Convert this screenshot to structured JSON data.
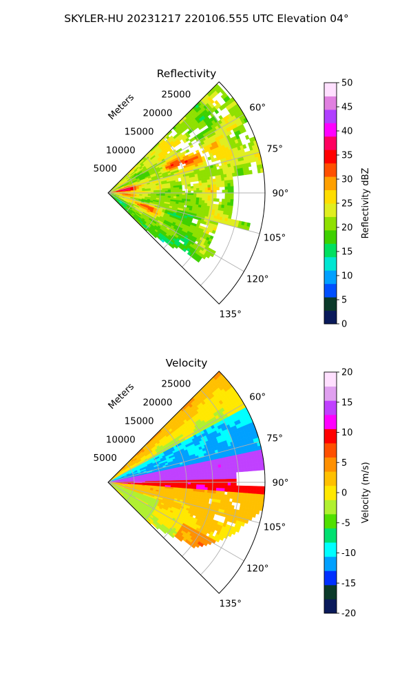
{
  "figure_title": "SKYLER-HU  20231217  220106.555 UTC Elevation 04°",
  "chart_data": [
    {
      "type": "heatmap",
      "projection": "polar-sector",
      "title": "Reflectivity",
      "radial_label": "Meters",
      "azimuth_range_deg": [
        45,
        135
      ],
      "range_limit_m": [
        0,
        30000
      ],
      "azimuth_ticks": [
        "60°",
        "75°",
        "90°",
        "105°",
        "120°",
        "135°"
      ],
      "range_ticks": [
        "5000",
        "10000",
        "15000",
        "20000",
        "25000"
      ],
      "grid": true,
      "colorbar": {
        "label": "Reflectivity dBZ",
        "range": [
          0,
          50
        ],
        "ticks": [
          "0",
          "5",
          "10",
          "15",
          "20",
          "25",
          "30",
          "35",
          "40",
          "45",
          "50"
        ],
        "colors": [
          "#0a1a5a",
          "#0b3a2a",
          "#0050ff",
          "#00a0ff",
          "#00e6d2",
          "#00e060",
          "#3ed000",
          "#8fe000",
          "#e0ee20",
          "#ffdd00",
          "#ffa000",
          "#ff5000",
          "#ff0000",
          "#ff0060",
          "#ff00ff",
          "#b040ff",
          "#e080e0",
          "#ffe0ff"
        ]
      },
      "field": "reflectivity"
    },
    {
      "type": "heatmap",
      "projection": "polar-sector",
      "title": "Velocity",
      "radial_label": "Meters",
      "azimuth_range_deg": [
        45,
        135
      ],
      "range_limit_m": [
        0,
        30000
      ],
      "azimuth_ticks": [
        "60°",
        "75°",
        "90°",
        "105°",
        "120°",
        "135°"
      ],
      "range_ticks": [
        "5000",
        "10000",
        "15000",
        "20000",
        "25000"
      ],
      "grid": true,
      "colorbar": {
        "label": "Velocity (m/s)",
        "range": [
          -20,
          20
        ],
        "ticks": [
          "-20",
          "-15",
          "-10",
          "-5",
          "0",
          "5",
          "10",
          "15",
          "20"
        ],
        "colors": [
          "#0a1a5a",
          "#0b3a2a",
          "#0030ff",
          "#00a0ff",
          "#00ffff",
          "#00e070",
          "#50e000",
          "#b0f030",
          "#ffe800",
          "#ffc000",
          "#ff9000",
          "#ff5000",
          "#ff0000",
          "#ff00ff",
          "#c040ff",
          "#e0a0f0",
          "#ffe0ff"
        ]
      },
      "field": "velocity"
    }
  ]
}
